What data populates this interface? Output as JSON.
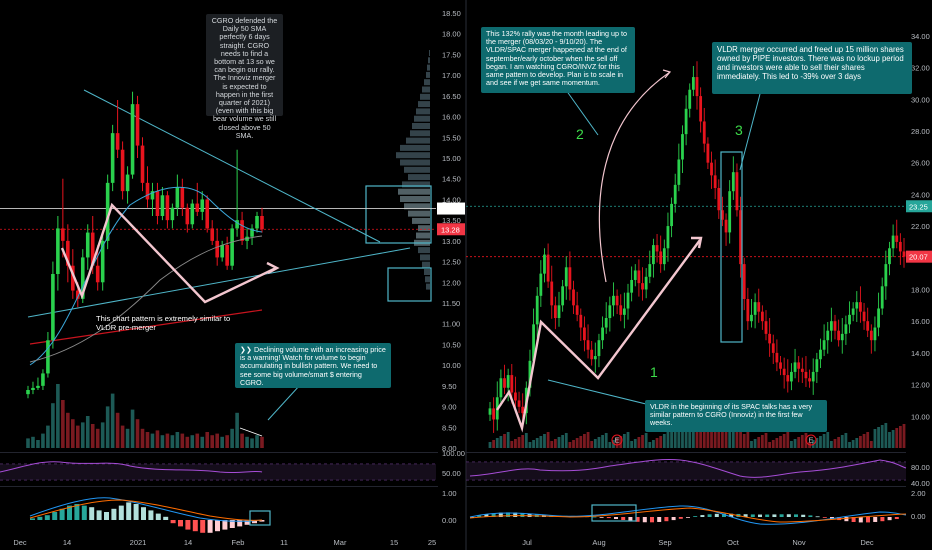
{
  "chart_data": [
    {
      "type": "candlestick",
      "title": "",
      "ylim": [
        8.0,
        18.5
      ],
      "y_ticks": [
        "18.50",
        "18.00",
        "17.50",
        "17.00",
        "16.50",
        "16.00",
        "15.50",
        "15.00",
        "14.50",
        "14.00",
        "13.50",
        "13.00",
        "12.50",
        "12.00",
        "11.50",
        "11.00",
        "10.50",
        "10.00",
        "9.50",
        "9.00",
        "8.50",
        "8.00"
      ],
      "x_ticks": [
        "Dec",
        "14",
        "2021",
        "14",
        "Feb",
        "11",
        "Mar",
        "15",
        "25"
      ],
      "price_tags": [
        {
          "label": "13.78",
          "value": 13.78,
          "color": "#ffffff",
          "text_color": "#000000"
        },
        {
          "label": "13.28",
          "value": 13.28,
          "color": "#f23645",
          "text_color": "#ffffff"
        }
      ],
      "candles": [
        {
          "o": 9.3,
          "h": 9.5,
          "l": 9.2,
          "c": 9.4
        },
        {
          "o": 9.4,
          "h": 9.6,
          "l": 9.3,
          "c": 9.45
        },
        {
          "o": 9.45,
          "h": 9.7,
          "l": 9.4,
          "c": 9.5
        },
        {
          "o": 9.5,
          "h": 9.9,
          "l": 9.4,
          "c": 9.8
        },
        {
          "o": 9.8,
          "h": 10.8,
          "l": 9.7,
          "c": 10.6
        },
        {
          "o": 10.6,
          "h": 12.5,
          "l": 10.4,
          "c": 12.2
        },
        {
          "o": 12.2,
          "h": 13.6,
          "l": 11.8,
          "c": 13.3
        },
        {
          "o": 13.3,
          "h": 14.5,
          "l": 12.6,
          "c": 13.0
        },
        {
          "o": 13.0,
          "h": 13.4,
          "l": 12.0,
          "c": 12.4
        },
        {
          "o": 12.4,
          "h": 12.8,
          "l": 11.6,
          "c": 11.8
        },
        {
          "o": 11.8,
          "h": 12.0,
          "l": 11.4,
          "c": 11.6
        },
        {
          "o": 11.6,
          "h": 12.8,
          "l": 11.5,
          "c": 12.6
        },
        {
          "o": 12.6,
          "h": 13.4,
          "l": 12.3,
          "c": 13.2
        },
        {
          "o": 13.2,
          "h": 13.6,
          "l": 12.2,
          "c": 12.4
        },
        {
          "o": 12.4,
          "h": 12.9,
          "l": 11.8,
          "c": 12.0
        },
        {
          "o": 12.0,
          "h": 13.2,
          "l": 11.8,
          "c": 13.0
        },
        {
          "o": 13.0,
          "h": 14.6,
          "l": 12.8,
          "c": 14.4
        },
        {
          "o": 14.4,
          "h": 15.8,
          "l": 14.2,
          "c": 15.6
        },
        {
          "o": 15.6,
          "h": 16.4,
          "l": 15.0,
          "c": 15.2
        },
        {
          "o": 15.2,
          "h": 15.4,
          "l": 14.0,
          "c": 14.2
        },
        {
          "o": 14.2,
          "h": 14.8,
          "l": 13.9,
          "c": 14.6
        },
        {
          "o": 14.6,
          "h": 16.6,
          "l": 14.5,
          "c": 16.3
        },
        {
          "o": 16.3,
          "h": 16.5,
          "l": 15.0,
          "c": 15.3
        },
        {
          "o": 15.3,
          "h": 15.5,
          "l": 14.2,
          "c": 14.4
        },
        {
          "o": 14.4,
          "h": 14.8,
          "l": 13.8,
          "c": 14.0
        },
        {
          "o": 14.0,
          "h": 14.4,
          "l": 13.6,
          "c": 14.2
        },
        {
          "o": 14.2,
          "h": 14.4,
          "l": 13.4,
          "c": 13.6
        },
        {
          "o": 13.6,
          "h": 14.3,
          "l": 13.5,
          "c": 14.1
        },
        {
          "o": 14.1,
          "h": 14.2,
          "l": 13.3,
          "c": 13.5
        },
        {
          "o": 13.5,
          "h": 13.9,
          "l": 13.3,
          "c": 13.8
        },
        {
          "o": 13.8,
          "h": 14.6,
          "l": 13.6,
          "c": 14.3
        },
        {
          "o": 14.3,
          "h": 14.5,
          "l": 13.6,
          "c": 13.8
        },
        {
          "o": 13.8,
          "h": 13.9,
          "l": 13.2,
          "c": 13.4
        },
        {
          "o": 13.4,
          "h": 14.0,
          "l": 13.3,
          "c": 13.9
        },
        {
          "o": 13.9,
          "h": 14.4,
          "l": 13.6,
          "c": 13.7
        },
        {
          "o": 13.7,
          "h": 14.2,
          "l": 13.5,
          "c": 14.0
        },
        {
          "o": 14.0,
          "h": 14.1,
          "l": 13.2,
          "c": 13.3
        },
        {
          "o": 13.3,
          "h": 13.5,
          "l": 12.9,
          "c": 13.0
        },
        {
          "o": 13.0,
          "h": 13.3,
          "l": 12.4,
          "c": 12.6
        },
        {
          "o": 12.6,
          "h": 13.0,
          "l": 12.5,
          "c": 12.9
        },
        {
          "o": 12.9,
          "h": 13.1,
          "l": 12.3,
          "c": 12.4
        },
        {
          "o": 12.4,
          "h": 13.4,
          "l": 12.3,
          "c": 13.3
        },
        {
          "o": 13.3,
          "h": 15.2,
          "l": 13.1,
          "c": 13.5
        },
        {
          "o": 13.5,
          "h": 13.7,
          "l": 12.9,
          "c": 13.0
        },
        {
          "o": 13.0,
          "h": 13.3,
          "l": 12.8,
          "c": 13.1
        },
        {
          "o": 13.1,
          "h": 13.4,
          "l": 12.9,
          "c": 13.3
        },
        {
          "o": 13.3,
          "h": 13.7,
          "l": 13.2,
          "c": 13.6
        },
        {
          "o": 13.6,
          "h": 13.8,
          "l": 13.2,
          "c": 13.28
        }
      ]
    },
    {
      "type": "candlestick",
      "title": "",
      "ylim": [
        8.0,
        35.0
      ],
      "y_ticks": [
        "34.00",
        "32.00",
        "30.00",
        "28.00",
        "26.00",
        "24.00",
        "22.00",
        "20.00",
        "18.00",
        "16.00",
        "14.00",
        "12.00",
        "10.00"
      ],
      "x_ticks": [
        "Jul",
        "Aug",
        "Sep",
        "Oct",
        "Nov",
        "Dec"
      ],
      "price_tags": [
        {
          "label": "23.25",
          "value": 23.25,
          "color": "#26a69a",
          "text_color": "#ffffff"
        },
        {
          "label": "20.07",
          "value": 20.07,
          "color": "#f23645",
          "text_color": "#ffffff"
        }
      ],
      "close_path": [
        10.5,
        9.8,
        11.2,
        12.4,
        11.8,
        12.6,
        11.5,
        11.0,
        10.6,
        10.2,
        11.8,
        13.5,
        15.8,
        17.6,
        19.0,
        20.2,
        18.5,
        17.0,
        16.2,
        17.0,
        18.2,
        19.4,
        18.0,
        17.0,
        16.4,
        15.6,
        14.8,
        14.2,
        13.6,
        13.8,
        14.8,
        15.6,
        16.2,
        17.0,
        17.6,
        17.0,
        16.4,
        16.8,
        17.8,
        18.6,
        19.2,
        18.4,
        18.0,
        18.8,
        19.6,
        20.8,
        20.4,
        19.6,
        20.6,
        22.0,
        23.4,
        24.6,
        26.2,
        27.8,
        29.4,
        30.6,
        31.4,
        30.2,
        28.6,
        27.2,
        26.0,
        25.2,
        24.4,
        23.0,
        22.4,
        21.6,
        24.2,
        25.4,
        23.0,
        19.6,
        17.4,
        16.0,
        16.4,
        17.2,
        16.6,
        16.0,
        15.2,
        14.6,
        14.0,
        13.4,
        13.0,
        12.6,
        12.2,
        12.8,
        13.4,
        13.0,
        12.8,
        12.4,
        12.2,
        12.8,
        13.6,
        14.2,
        14.8,
        15.4,
        16.0,
        15.4,
        14.8,
        15.2,
        15.8,
        16.4,
        16.8,
        17.2,
        16.6,
        16.0,
        15.4,
        14.8,
        15.6,
        16.8,
        18.2,
        19.6,
        20.6,
        21.4,
        21.0,
        20.4,
        20.07
      ]
    }
  ],
  "rsi": {
    "left_ticks": [
      "100.00",
      "50.00"
    ],
    "right_ticks": [
      "80.00",
      "40.00"
    ]
  },
  "macd": {
    "left_ticks": [
      "1.00",
      "0.00"
    ],
    "right_ticks": [
      "2.00",
      "0.00"
    ]
  },
  "earnings_markers": [
    "E",
    "E"
  ],
  "annotations": {
    "cgro_sma": "CGRO defended the Daily 50 SMA perfectly 6 days straight. CGRO needs to find a bottom at 13 so we can begin our rally. The Innoviz merger is expected to happen in the first quarter of 2021) (even with this big bear volume we still closed above 50 SMA.",
    "chart_pattern": "This chart pattern is extremely similar to VLDR pre-merger",
    "declining_volume": "❯❯ Declining volume with an increasing price is a warning! Watch for volume to begin accumulating in bullish pattern. We need to see some big volume/smart $ entering CGRO.",
    "rally": "This 132% rally was the month leading up to the merger (08/03/20 - 9/10/20). The VLDR/SPAC merger happened at the end of september/early october when the sell off began. I am watching CGRO/INVZ for this same pattern to develop. Plan is to scale in and see if we get same momentum.",
    "vldr_merger": "VLDR merger occurred and freed up 15 million shares owned by PIPE investors. There was no lockup period and investors were able to sell their shares immediately. This led to -39% over 3 days",
    "vldr_beginning": "VLDR in the beginning of its SPAC talks has a very similar pattern to CGRO (Innoviz) in the first few weeks."
  },
  "labels": {
    "one": "1",
    "two": "2",
    "three": "3"
  },
  "colors": {
    "up": "#2ad14d",
    "down": "#e8141e",
    "accent_box": "#4fb6c9",
    "pattern_line": "#f3c6cf",
    "sma_blue": "#3aa6d8",
    "rsi": "#a64dd6"
  }
}
